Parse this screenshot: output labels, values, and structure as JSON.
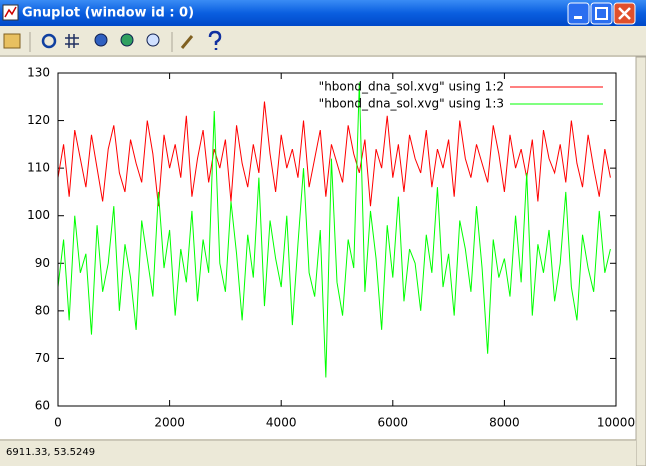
{
  "window": {
    "title": "Gnuplot (window id : 0)",
    "status": "6911.33, 53.5249"
  },
  "chart_data": {
    "type": "line",
    "x": [
      0,
      100,
      200,
      300,
      400,
      500,
      600,
      700,
      800,
      900,
      1000,
      1100,
      1200,
      1300,
      1400,
      1500,
      1600,
      1700,
      1800,
      1900,
      2000,
      2100,
      2200,
      2300,
      2400,
      2500,
      2600,
      2700,
      2800,
      2900,
      3000,
      3100,
      3200,
      3300,
      3400,
      3500,
      3600,
      3700,
      3800,
      3900,
      4000,
      4100,
      4200,
      4300,
      4400,
      4500,
      4600,
      4700,
      4800,
      4900,
      5000,
      5100,
      5200,
      5300,
      5400,
      5500,
      5600,
      5700,
      5800,
      5900,
      6000,
      6100,
      6200,
      6300,
      6400,
      6500,
      6600,
      6700,
      6800,
      6900,
      7000,
      7100,
      7200,
      7300,
      7400,
      7500,
      7600,
      7700,
      7800,
      7900,
      8000,
      8100,
      8200,
      8300,
      8400,
      8500,
      8600,
      8700,
      8800,
      8900,
      9000,
      9100,
      9200,
      9300,
      9400,
      9500,
      9600,
      9700,
      9800,
      9900
    ],
    "series": [
      {
        "name": "\"hbond_dna_sol.xvg\" using 1:2",
        "color": "#ff0000",
        "values": [
          108,
          115,
          104,
          118,
          112,
          106,
          117,
          110,
          103,
          114,
          119,
          109,
          105,
          116,
          111,
          107,
          120,
          113,
          102,
          117,
          110,
          115,
          108,
          121,
          104,
          112,
          118,
          107,
          114,
          110,
          116,
          103,
          119,
          111,
          106,
          115,
          109,
          124,
          113,
          105,
          117,
          110,
          114,
          108,
          120,
          106,
          112,
          118,
          104,
          115,
          111,
          107,
          119,
          113,
          109,
          116,
          102,
          114,
          110,
          121,
          108,
          115,
          105,
          117,
          112,
          109,
          118,
          106,
          114,
          110,
          116,
          104,
          120,
          112,
          108,
          115,
          111,
          107,
          119,
          113,
          105,
          117,
          110,
          114,
          108,
          116,
          103,
          118,
          112,
          109,
          115,
          107,
          120,
          111,
          106,
          117,
          110,
          104,
          114,
          108
        ]
      },
      {
        "name": "\"hbond_dna_sol.xvg\" using 1:3",
        "color": "#00ff00",
        "values": [
          85,
          95,
          78,
          100,
          88,
          92,
          75,
          98,
          84,
          90,
          102,
          80,
          94,
          87,
          76,
          99,
          91,
          83,
          105,
          89,
          97,
          79,
          93,
          86,
          101,
          82,
          95,
          88,
          122,
          90,
          84,
          103,
          92,
          78,
          96,
          87,
          108,
          81,
          99,
          91,
          85,
          100,
          77,
          94,
          110,
          88,
          83,
          97,
          66,
          112,
          86,
          79,
          95,
          89,
          128,
          84,
          101,
          91,
          76,
          98,
          87,
          104,
          82,
          93,
          90,
          80,
          96,
          88,
          106,
          85,
          92,
          79,
          99,
          93,
          84,
          102,
          89,
          71,
          95,
          87,
          91,
          83,
          100,
          86,
          109,
          79,
          94,
          88,
          97,
          82,
          90,
          105,
          85,
          78,
          96,
          89,
          84,
          101,
          88,
          93
        ]
      }
    ],
    "xlim": [
      0,
      10000
    ],
    "ylim": [
      60,
      130
    ],
    "xticks": [
      0,
      2000,
      4000,
      6000,
      8000,
      10000
    ],
    "yticks": [
      60,
      70,
      80,
      90,
      100,
      110,
      120,
      130
    ],
    "legend": "top-right"
  }
}
